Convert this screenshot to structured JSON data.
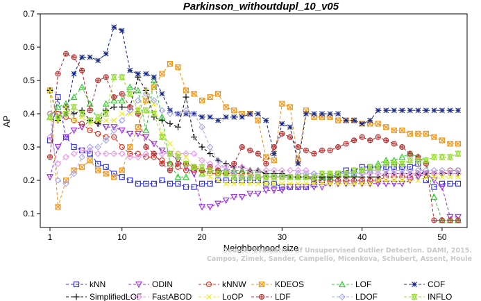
{
  "chart_data": {
    "type": "line",
    "title": "Parkinson_withoutdupl_10_v05",
    "xlabel": "Neighborhood size",
    "ylabel": "AP",
    "xlim": [
      1,
      52
    ],
    "ylim": [
      0.05,
      0.7
    ],
    "x_ticks": [
      1,
      10,
      20,
      30,
      40,
      50
    ],
    "y_ticks": [
      0.1,
      0.2,
      0.3,
      0.4,
      0.5,
      0.6,
      0.7
    ],
    "y_tick_labels": [
      "0.1",
      "0.2",
      "0.3",
      "0.4",
      "0.5",
      "0.6",
      "0.7"
    ],
    "grid": false,
    "legend_position": "bottom",
    "x": [
      1,
      2,
      3,
      4,
      5,
      6,
      7,
      8,
      9,
      10,
      11,
      12,
      13,
      14,
      15,
      16,
      17,
      18,
      19,
      20,
      21,
      22,
      23,
      24,
      25,
      26,
      27,
      28,
      29,
      30,
      31,
      32,
      33,
      34,
      35,
      36,
      37,
      38,
      39,
      40,
      41,
      42,
      43,
      44,
      45,
      46,
      47,
      48,
      49,
      50,
      51,
      52
    ],
    "watermark": [
      "Source: Evaluation of Unsupervised Outlier Detection. DAMI, 2015.",
      "Campos, Zimek, Sander, Campello, Micenkova, Schubert, Assent, Houle"
    ],
    "series": [
      {
        "name": "kNN",
        "color": "#3333dd",
        "marker": "square",
        "values": [
          0.32,
          0.45,
          0.33,
          0.3,
          0.29,
          0.28,
          0.25,
          0.24,
          0.22,
          0.21,
          0.2,
          0.19,
          0.19,
          0.19,
          0.2,
          0.19,
          0.19,
          0.18,
          0.18,
          0.19,
          0.19,
          0.2,
          0.2,
          0.2,
          0.2,
          0.2,
          0.2,
          0.19,
          0.19,
          0.18,
          0.18,
          0.18,
          0.18,
          0.19,
          0.2,
          0.21,
          0.22,
          0.23,
          0.23,
          0.24,
          0.24,
          0.24,
          0.24,
          0.24,
          0.24,
          0.24,
          0.25,
          0.2,
          0.18,
          0.19,
          0.19,
          0.19
        ]
      },
      {
        "name": "ODIN",
        "color": "#9933dd",
        "marker": "triangle-down",
        "values": [
          0.21,
          0.3,
          0.33,
          0.35,
          0.36,
          0.38,
          0.37,
          0.36,
          0.36,
          0.35,
          0.34,
          0.34,
          0.33,
          0.31,
          0.29,
          0.28,
          0.26,
          0.24,
          0.22,
          0.12,
          0.12,
          0.13,
          0.14,
          0.15,
          0.15,
          0.16,
          0.16,
          0.17,
          0.17,
          0.17,
          0.18,
          0.18,
          0.18,
          0.18,
          0.18,
          0.19,
          0.19,
          0.19,
          0.19,
          0.19,
          0.19,
          0.19,
          0.19,
          0.19,
          0.19,
          0.2,
          0.21,
          0.22,
          0.2,
          0.18,
          0.09,
          0.09
        ]
      },
      {
        "name": "kNNW",
        "color": "#dd3322",
        "marker": "circle",
        "values": [
          0.4,
          0.4,
          0.39,
          0.38,
          0.37,
          0.35,
          0.34,
          0.33,
          0.33,
          0.3,
          0.28,
          0.28,
          0.27,
          0.27,
          0.26,
          0.25,
          0.24,
          0.23,
          0.23,
          0.23,
          0.22,
          0.22,
          0.22,
          0.22,
          0.22,
          0.22,
          0.21,
          0.21,
          0.21,
          0.21,
          0.21,
          0.21,
          0.21,
          0.2,
          0.2,
          0.2,
          0.2,
          0.2,
          0.2,
          0.2,
          0.2,
          0.2,
          0.21,
          0.21,
          0.21,
          0.21,
          0.22,
          0.22,
          0.22,
          0.22,
          0.23,
          0.23
        ]
      },
      {
        "name": "KDEOS",
        "color": "#ee9922",
        "marker": "square-x",
        "values": [
          0.47,
          0.12,
          0.2,
          0.23,
          0.24,
          0.26,
          0.23,
          0.22,
          0.21,
          0.23,
          0.3,
          0.36,
          0.44,
          0.48,
          0.52,
          0.55,
          0.54,
          0.47,
          0.46,
          0.44,
          0.45,
          0.46,
          0.42,
          0.41,
          0.4,
          0.4,
          0.38,
          0.27,
          0.26,
          0.43,
          0.42,
          0.26,
          0.41,
          0.39,
          0.39,
          0.39,
          0.38,
          0.38,
          0.38,
          0.37,
          0.37,
          0.37,
          0.36,
          0.35,
          0.35,
          0.34,
          0.34,
          0.34,
          0.33,
          0.32,
          0.31,
          0.31
        ]
      },
      {
        "name": "LOF",
        "color": "#33cc33",
        "marker": "triangle",
        "values": [
          0.39,
          0.42,
          0.43,
          0.45,
          0.48,
          0.43,
          0.38,
          0.43,
          0.44,
          0.44,
          0.48,
          0.47,
          0.35,
          0.5,
          0.39,
          0.25,
          0.21,
          0.21,
          0.24,
          0.22,
          0.23,
          0.23,
          0.23,
          0.23,
          0.23,
          0.23,
          0.23,
          0.22,
          0.22,
          0.22,
          0.21,
          0.21,
          0.21,
          0.21,
          0.21,
          0.21,
          0.22,
          0.22,
          0.22,
          0.23,
          0.23,
          0.25,
          0.26,
          0.26,
          0.27,
          0.28,
          0.27,
          0.26,
          0.15,
          0.08,
          0.08,
          0.08
        ]
      },
      {
        "name": "COF",
        "color": "#1a2a88",
        "marker": "asterisk",
        "values": [
          0.47,
          0.39,
          0.4,
          0.52,
          0.57,
          0.57,
          0.56,
          0.58,
          0.66,
          0.65,
          0.53,
          0.52,
          0.52,
          0.51,
          0.46,
          0.41,
          0.4,
          0.4,
          0.4,
          0.39,
          0.39,
          0.38,
          0.39,
          0.39,
          0.39,
          0.4,
          0.4,
          0.38,
          0.28,
          0.37,
          0.36,
          0.25,
          0.4,
          0.4,
          0.4,
          0.4,
          0.4,
          0.38,
          0.38,
          0.37,
          0.38,
          0.41,
          0.41,
          0.41,
          0.41,
          0.41,
          0.41,
          0.41,
          0.41,
          0.41,
          0.41,
          0.41
        ]
      },
      {
        "name": "SimplifiedLOF",
        "color": "#111111",
        "marker": "plus",
        "values": [
          0.47,
          0.38,
          0.42,
          0.4,
          0.41,
          0.38,
          0.37,
          0.41,
          0.42,
          0.42,
          0.42,
          0.51,
          0.47,
          0.39,
          0.38,
          0.37,
          0.36,
          0.45,
          0.33,
          0.3,
          0.28,
          0.26,
          0.25,
          0.24,
          0.24,
          0.23,
          0.23,
          0.22,
          0.22,
          0.22,
          0.21,
          0.21,
          0.21,
          0.21,
          0.21,
          0.21,
          0.21,
          0.21,
          0.21,
          0.21,
          0.21,
          0.21,
          0.22,
          0.22,
          0.22,
          0.22,
          0.22,
          0.22,
          0.22,
          0.22,
          0.22,
          0.22
        ]
      },
      {
        "name": "FastABOD",
        "color": "#ee99ee",
        "marker": "diamond",
        "values": [
          0.33,
          0.25,
          0.27,
          0.28,
          0.29,
          0.29,
          0.28,
          0.28,
          0.28,
          0.28,
          0.27,
          0.27,
          0.28,
          0.28,
          0.28,
          0.28,
          0.28,
          0.28,
          0.28,
          0.26,
          0.25,
          0.24,
          0.24,
          0.24,
          0.24,
          0.23,
          0.23,
          0.23,
          0.23,
          0.23,
          0.23,
          0.23,
          0.23,
          0.22,
          0.22,
          0.22,
          0.22,
          0.22,
          0.22,
          0.22,
          0.22,
          0.22,
          0.22,
          0.22,
          0.22,
          0.22,
          0.22,
          0.22,
          0.22,
          0.22,
          0.22,
          0.22
        ]
      },
      {
        "name": "LoOP",
        "color": "#eeee22",
        "marker": "x",
        "values": [
          0.47,
          0.38,
          0.42,
          0.38,
          0.39,
          0.37,
          0.38,
          0.38,
          0.38,
          0.4,
          0.4,
          0.41,
          0.47,
          0.43,
          0.34,
          0.31,
          0.28,
          0.27,
          0.24,
          0.22,
          0.21,
          0.2,
          0.19,
          0.19,
          0.19,
          0.19,
          0.19,
          0.19,
          0.19,
          0.19,
          0.19,
          0.19,
          0.19,
          0.19,
          0.19,
          0.19,
          0.19,
          0.19,
          0.19,
          0.19,
          0.19,
          0.2,
          0.2,
          0.2,
          0.2,
          0.2,
          0.2,
          0.21,
          0.21,
          0.21,
          0.21,
          0.21
        ]
      },
      {
        "name": "LDF",
        "color": "#bb3333",
        "marker": "circle-plus",
        "values": [
          0.27,
          0.52,
          0.58,
          0.57,
          0.53,
          0.41,
          0.5,
          0.51,
          0.45,
          0.46,
          0.42,
          0.4,
          0.3,
          0.28,
          0.25,
          0.23,
          0.25,
          0.25,
          0.24,
          0.23,
          0.24,
          0.23,
          0.22,
          0.25,
          0.3,
          0.29,
          0.28,
          0.25,
          0.3,
          0.34,
          0.33,
          0.3,
          0.29,
          0.28,
          0.29,
          0.29,
          0.3,
          0.31,
          0.32,
          0.33,
          0.32,
          0.33,
          0.32,
          0.31,
          0.3,
          0.28,
          0.27,
          0.25,
          0.08,
          0.08,
          0.08,
          0.08
        ]
      },
      {
        "name": "LDOF",
        "color": "#aaaaee",
        "marker": "diamond",
        "values": [
          0.4,
          0.2,
          0.19,
          0.22,
          0.27,
          0.3,
          0.3,
          0.32,
          0.35,
          0.38,
          0.41,
          0.44,
          0.46,
          0.44,
          0.41,
          0.4,
          0.4,
          0.41,
          0.4,
          0.36,
          0.3,
          0.26,
          0.23,
          0.22,
          0.21,
          0.21,
          0.21,
          0.21,
          0.21,
          0.21,
          0.21,
          0.22,
          0.22,
          0.22,
          0.22,
          0.22,
          0.22,
          0.22,
          0.22,
          0.22,
          0.23,
          0.23,
          0.23,
          0.23,
          0.23,
          0.23,
          0.23,
          0.23,
          0.23,
          0.23,
          0.23,
          0.23
        ]
      },
      {
        "name": "INFLO",
        "color": "#99dd33",
        "marker": "star-x",
        "values": [
          0.39,
          0.39,
          0.4,
          0.42,
          0.4,
          0.38,
          0.39,
          0.4,
          0.51,
          0.51,
          0.46,
          0.41,
          0.41,
          0.4,
          0.33,
          0.28,
          0.27,
          0.25,
          0.24,
          0.24,
          0.23,
          0.22,
          0.22,
          0.21,
          0.21,
          0.21,
          0.21,
          0.21,
          0.21,
          0.21,
          0.21,
          0.21,
          0.21,
          0.21,
          0.22,
          0.22,
          0.22,
          0.22,
          0.23,
          0.23,
          0.24,
          0.24,
          0.25,
          0.25,
          0.25,
          0.26,
          0.26,
          0.26,
          0.27,
          0.27,
          0.27,
          0.28
        ]
      }
    ]
  }
}
